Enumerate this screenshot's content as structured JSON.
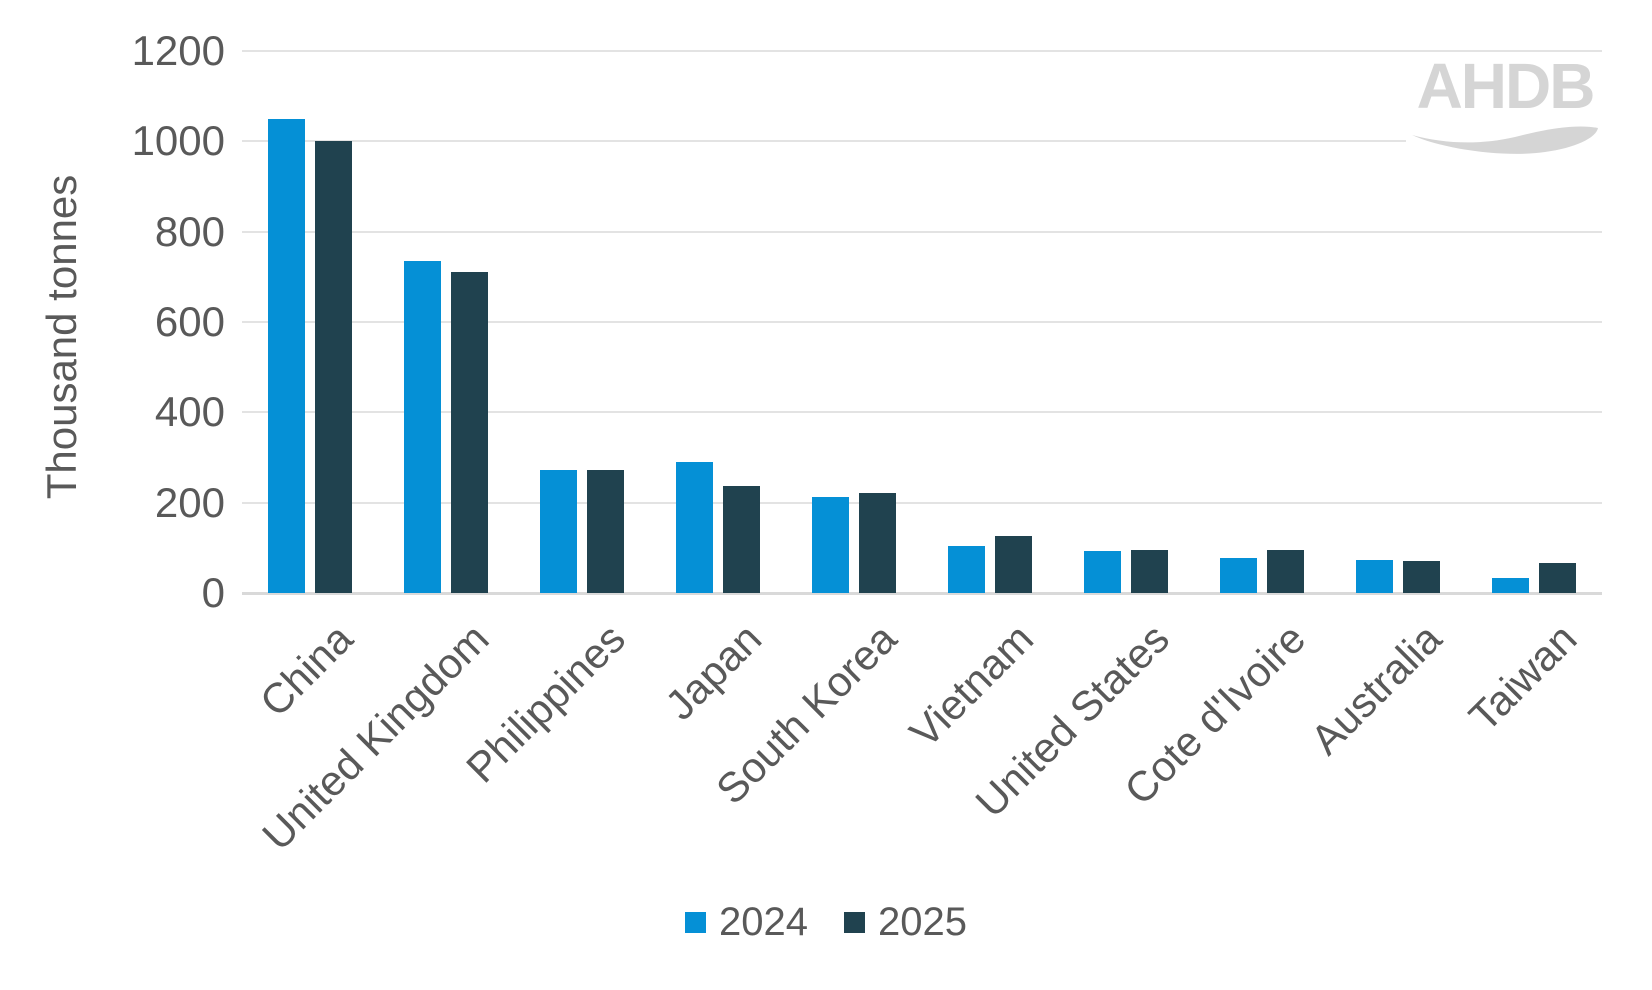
{
  "chart_data": {
    "type": "bar",
    "title": "",
    "ylabel": "Thousand tonnes",
    "xlabel": "",
    "ylim": [
      0,
      1200
    ],
    "ytick_step": 200,
    "yticks": [
      0,
      200,
      400,
      600,
      800,
      1000,
      1200
    ],
    "grid": "horizontal",
    "legend_position": "bottom",
    "categories": [
      "China",
      "United Kingdom",
      "Philippines",
      "Japan",
      "South Korea",
      "Vietnam",
      "United States",
      "Cote d'Ivoire",
      "Australia",
      "Taiwan"
    ],
    "series": [
      {
        "name": "2024",
        "color": "#0590d6",
        "values": [
          1050,
          736,
          272,
          290,
          213,
          105,
          94,
          78,
          72,
          33
        ]
      },
      {
        "name": "2025",
        "color": "#20424f",
        "values": [
          1000,
          710,
          272,
          238,
          221,
          127,
          96,
          96,
          70,
          67
        ]
      }
    ]
  },
  "logo": {
    "text": "AHDB"
  },
  "colors": {
    "axis_text": "#595959",
    "gridline": "#e3e3e3",
    "axis_line": "#d9d9d9",
    "logo_gray": "#d5d5d5",
    "background": "#ffffff"
  }
}
